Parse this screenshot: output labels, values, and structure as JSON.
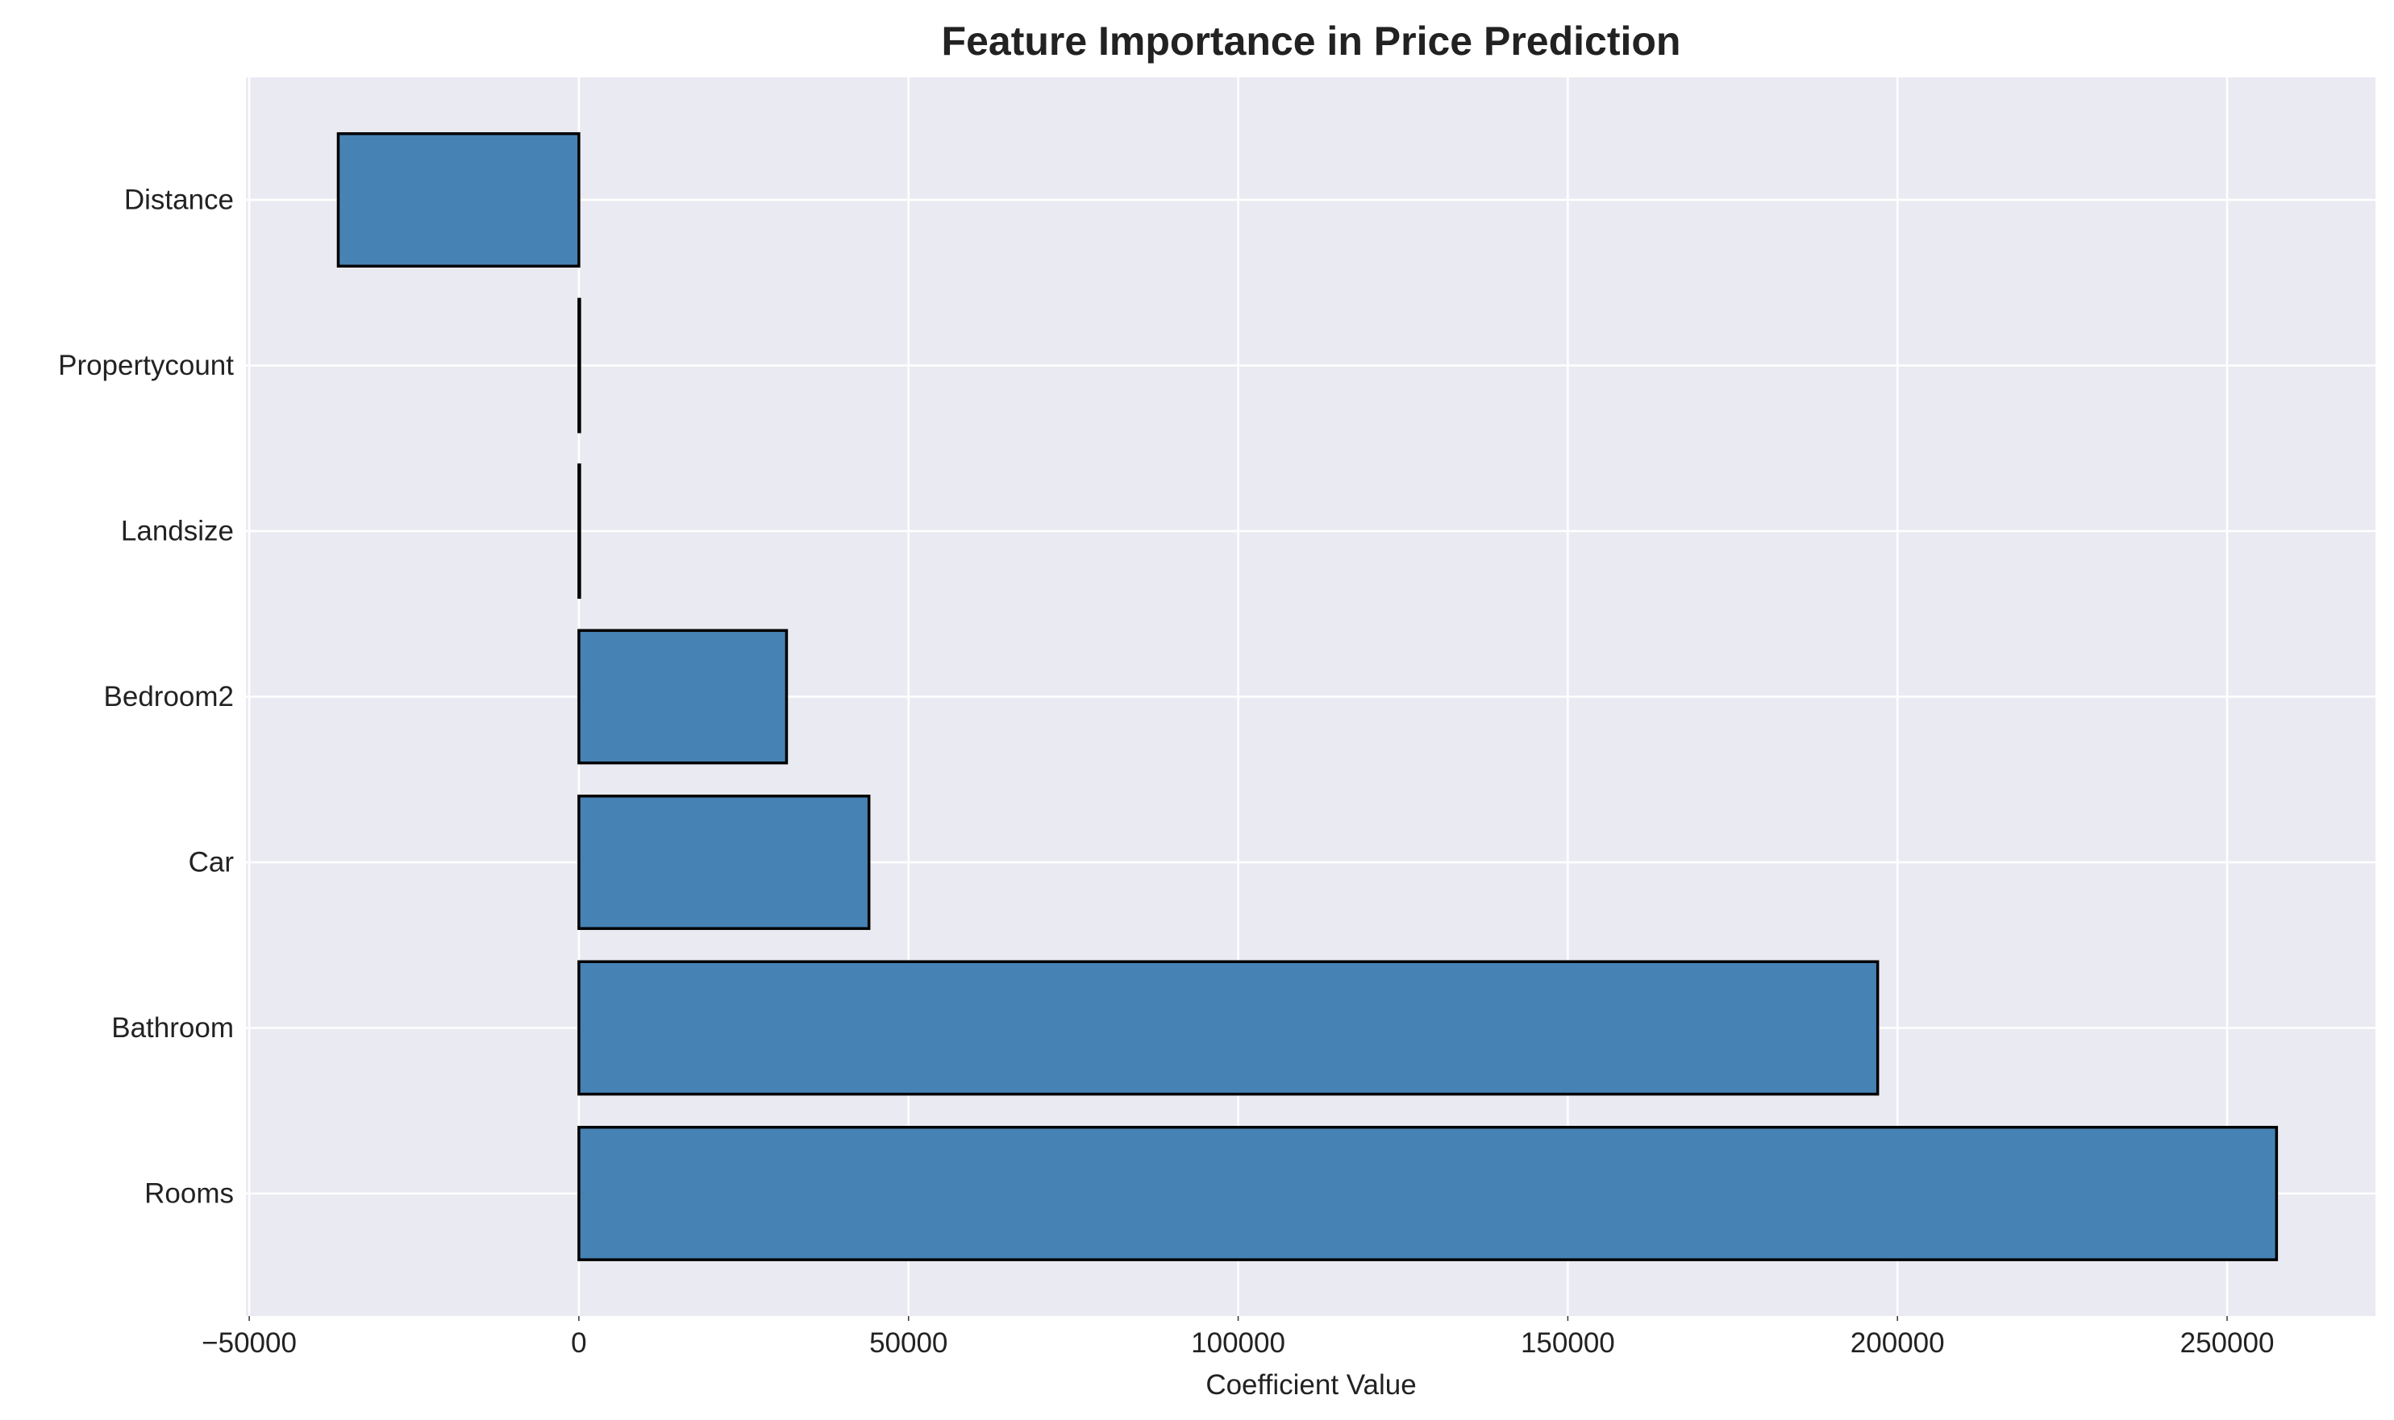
{
  "chart_data": {
    "type": "bar",
    "orientation": "horizontal",
    "title": "Feature Importance in Price Prediction",
    "xlabel": "Coefficient Value",
    "ylabel": "",
    "categories": [
      "Rooms",
      "Bathroom",
      "Car",
      "Bedroom2",
      "Landsize",
      "Propertycount",
      "Distance"
    ],
    "values": [
      257500,
      197000,
      44000,
      31500,
      20,
      5,
      -36500
    ],
    "xlim": [
      -50500,
      272500
    ],
    "xticks": [
      -50000,
      0,
      50000,
      100000,
      150000,
      200000,
      250000
    ],
    "xtick_labels": [
      "−50000",
      "0",
      "50000",
      "100000",
      "150000",
      "200000",
      "250000"
    ],
    "grid": true,
    "colors": {
      "bar_fill": "#4682b4",
      "bar_edge": "#000000",
      "plot_background": "#eaeaf2",
      "grid": "#ffffff"
    }
  }
}
